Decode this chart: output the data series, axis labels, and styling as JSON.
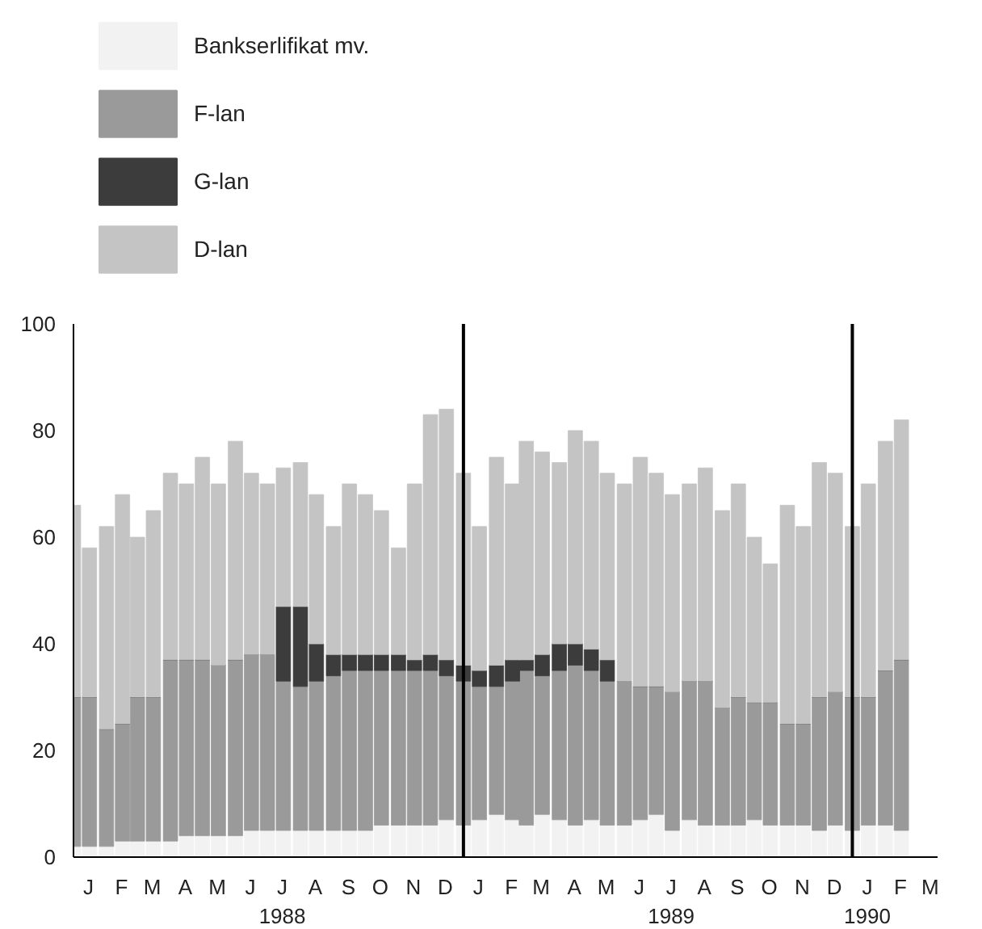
{
  "chart_data": {
    "type": "bar",
    "stacked": true,
    "x": [
      "1988-01-01",
      "1988-01-16",
      "1988-02-01",
      "1988-02-16",
      "1988-03-01",
      "1988-03-16",
      "1988-04-01",
      "1988-04-16",
      "1988-05-01",
      "1988-05-16",
      "1988-06-01",
      "1988-06-16",
      "1988-07-01",
      "1988-07-16",
      "1988-08-01",
      "1988-08-16",
      "1988-09-01",
      "1988-09-16",
      "1988-10-01",
      "1988-10-16",
      "1988-11-01",
      "1988-11-16",
      "1988-12-01",
      "1988-12-16",
      "1989-01-01",
      "1989-01-16",
      "1989-02-01",
      "1989-02-16",
      "1989-03-01",
      "1989-03-16",
      "1989-04-01",
      "1989-04-16",
      "1989-05-01",
      "1989-05-16",
      "1989-06-01",
      "1989-06-16",
      "1989-07-01",
      "1989-07-16",
      "1989-08-01",
      "1989-08-16",
      "1989-09-01",
      "1989-09-16",
      "1989-10-01",
      "1989-10-16",
      "1989-11-01",
      "1989-11-16",
      "1989-12-01",
      "1989-12-16",
      "1990-01-01",
      "1990-01-16",
      "1990-02-01",
      "1990-02-16"
    ],
    "series": [
      {
        "name": "Bankserlifikat mv.",
        "color": "#f2f2f2",
        "values": [
          2,
          2,
          2,
          3,
          3,
          3,
          3,
          4,
          4,
          4,
          4,
          5,
          5,
          5,
          5,
          5,
          5,
          5,
          5,
          6,
          6,
          6,
          6,
          7,
          6,
          7,
          8,
          7,
          6,
          8,
          7,
          6,
          7,
          6,
          6,
          7,
          8,
          5,
          7,
          6,
          6,
          6,
          7,
          6,
          6,
          6,
          5,
          6,
          5,
          6,
          6,
          5
        ]
      },
      {
        "name": "F-lan",
        "color": "#9a9a9a",
        "values": [
          28,
          28,
          22,
          22,
          27,
          27,
          34,
          33,
          33,
          32,
          33,
          33,
          33,
          28,
          27,
          28,
          29,
          30,
          30,
          29,
          29,
          29,
          29,
          27,
          27,
          25,
          24,
          26,
          29,
          26,
          28,
          30,
          28,
          27,
          27,
          25,
          24,
          26,
          26,
          27,
          22,
          24,
          22,
          23,
          19,
          19,
          25,
          25,
          25,
          24,
          29,
          32
        ]
      },
      {
        "name": "G-lan",
        "color": "#3c3c3c",
        "values": [
          0,
          0,
          0,
          0,
          0,
          0,
          0,
          0,
          0,
          0,
          0,
          0,
          0,
          14,
          15,
          7,
          4,
          3,
          3,
          3,
          3,
          2,
          3,
          3,
          3,
          3,
          4,
          4,
          2,
          4,
          5,
          4,
          4,
          4,
          0,
          0,
          0,
          0,
          0,
          0,
          0,
          0,
          0,
          0,
          0,
          0,
          0,
          0,
          0,
          0,
          0,
          0
        ]
      },
      {
        "name": "D-lan",
        "color": "#c4c4c4",
        "values": [
          36,
          28,
          38,
          43,
          30,
          35,
          35,
          33,
          38,
          34,
          41,
          34,
          32,
          26,
          27,
          28,
          24,
          32,
          30,
          27,
          20,
          33,
          45,
          47,
          36,
          27,
          39,
          33,
          41,
          38,
          34,
          40,
          39,
          35,
          37,
          43,
          40,
          37,
          37,
          40,
          37,
          40,
          31,
          26,
          41,
          37,
          44,
          41,
          32,
          40,
          43,
          45
        ]
      }
    ],
    "ylim": [
      0,
      100
    ],
    "yticks": [
      0,
      20,
      40,
      60,
      80,
      100
    ],
    "xlim": [
      "1988-01-01",
      "1990-03-22"
    ],
    "xticks": [
      {
        "value": "1988-01-15",
        "label": "J"
      },
      {
        "value": "1988-02-15",
        "label": "F"
      },
      {
        "value": "1988-03-15",
        "label": "M"
      },
      {
        "value": "1988-04-15",
        "label": "A"
      },
      {
        "value": "1988-05-15",
        "label": "M"
      },
      {
        "value": "1988-06-15",
        "label": "J"
      },
      {
        "value": "1988-07-15",
        "label": "J\n1988"
      },
      {
        "value": "1988-08-15",
        "label": "A"
      },
      {
        "value": "1988-09-15",
        "label": "S"
      },
      {
        "value": "1988-10-15",
        "label": "O"
      },
      {
        "value": "1988-11-15",
        "label": "N"
      },
      {
        "value": "1988-12-15",
        "label": "D"
      },
      {
        "value": "1989-01-15",
        "label": "J"
      },
      {
        "value": "1989-02-15",
        "label": "F"
      },
      {
        "value": "1989-03-15",
        "label": "M"
      },
      {
        "value": "1989-04-15",
        "label": "A"
      },
      {
        "value": "1989-05-15",
        "label": "M"
      },
      {
        "value": "1989-06-15",
        "label": "J"
      },
      {
        "value": "1989-07-15",
        "label": "J\n1989"
      },
      {
        "value": "1989-08-15",
        "label": "A"
      },
      {
        "value": "1989-09-15",
        "label": "S"
      },
      {
        "value": "1989-10-15",
        "label": "O"
      },
      {
        "value": "1989-11-15",
        "label": "N"
      },
      {
        "value": "1989-12-15",
        "label": "D"
      },
      {
        "value": "1990-01-15",
        "label": "J\n1990"
      },
      {
        "value": "1990-02-15",
        "label": "F"
      },
      {
        "value": "1990-03-15",
        "label": "M"
      }
    ],
    "ref_lines": [
      {
        "axis": "x",
        "value": "1989-01-01",
        "label": null,
        "color": "#000000"
      },
      {
        "axis": "x",
        "value": "1990-01-01",
        "label": null,
        "color": "#000000"
      }
    ],
    "grid": false,
    "legend": "top left"
  }
}
